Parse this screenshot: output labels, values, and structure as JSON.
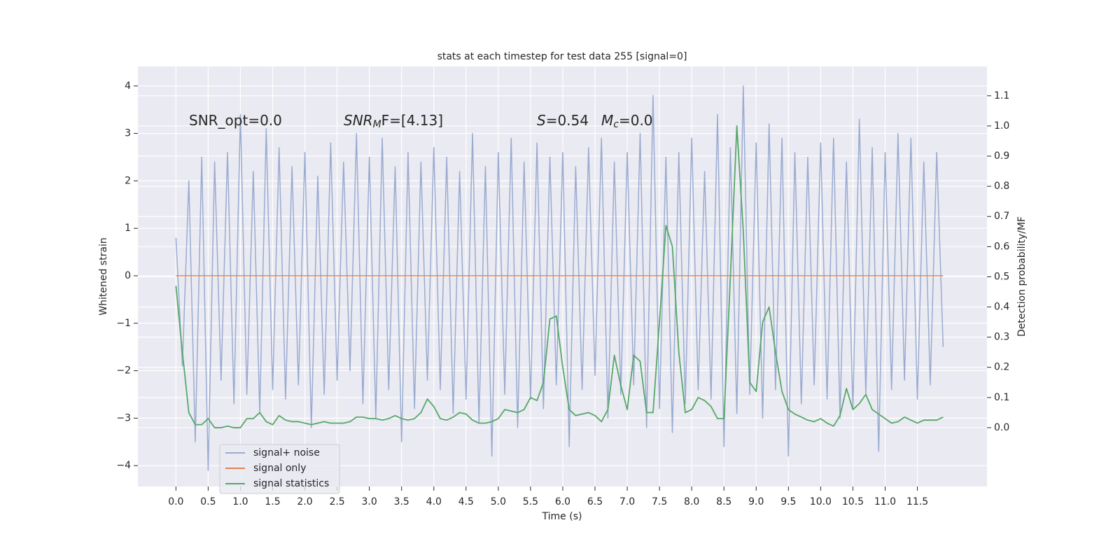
{
  "chart_data": {
    "type": "line",
    "title": "stats at each timestep for test data 255 [signal=0]",
    "xlabel": "Time (s)",
    "ylabel": "Whitened strain",
    "y2label": "Detection probability/MF",
    "annotations": [
      {
        "text": "SNR_opt=0.0"
      },
      {
        "base": "SNR",
        "sub": "M",
        "rest": "F=[4.13]"
      },
      {
        "base": "S",
        "rest": "=0.54"
      },
      {
        "base": "M",
        "sub": "c",
        "rest": "=0.0"
      }
    ],
    "x": [
      0,
      0.1,
      0.2,
      0.3,
      0.4,
      0.5,
      0.6,
      0.7,
      0.8,
      0.9,
      1,
      1.1,
      1.2,
      1.3,
      1.4,
      1.5,
      1.6,
      1.7,
      1.8,
      1.9,
      2,
      2.1,
      2.2,
      2.3,
      2.4,
      2.5,
      2.6,
      2.7,
      2.8,
      2.9,
      3,
      3.1,
      3.2,
      3.3,
      3.4,
      3.5,
      3.6,
      3.7,
      3.8,
      3.9,
      4,
      4.1,
      4.2,
      4.3,
      4.4,
      4.5,
      4.6,
      4.7,
      4.8,
      4.9,
      5,
      5.1,
      5.2,
      5.3,
      5.4,
      5.5,
      5.6,
      5.7,
      5.8,
      5.9,
      6,
      6.1,
      6.2,
      6.3,
      6.4,
      6.5,
      6.6,
      6.7,
      6.8,
      6.9,
      7,
      7.1,
      7.2,
      7.3,
      7.4,
      7.5,
      7.6,
      7.7,
      7.8,
      7.9,
      8,
      8.1,
      8.2,
      8.3,
      8.4,
      8.5,
      8.6,
      8.7,
      8.8,
      8.9,
      9,
      9.1,
      9.2,
      9.3,
      9.4,
      9.5,
      9.6,
      9.7,
      9.8,
      9.9,
      10,
      10.1,
      10.2,
      10.3,
      10.4,
      10.5,
      10.6,
      10.7,
      10.8,
      10.9,
      11,
      11.1,
      11.2,
      11.3,
      11.4,
      11.5,
      11.6,
      11.7,
      11.8,
      11.9
    ],
    "series": [
      {
        "name": "signal+ noise",
        "color": "#9aabd0",
        "values": [
          0.8,
          -1.9,
          2.0,
          -3.5,
          2.5,
          -4.1,
          2.4,
          -2.2,
          2.6,
          -2.7,
          3.4,
          -2.5,
          2.2,
          -2.9,
          3.1,
          -2.4,
          2.7,
          -2.6,
          2.3,
          -2.3,
          2.6,
          -3.2,
          2.1,
          -2.5,
          2.8,
          -2.2,
          2.4,
          -2.0,
          3.0,
          -2.7,
          2.5,
          -3.0,
          2.9,
          -2.4,
          2.3,
          -3.5,
          2.6,
          -2.8,
          2.4,
          -2.2,
          2.7,
          -2.4,
          2.5,
          -2.9,
          2.2,
          -2.6,
          3.0,
          -3.1,
          2.3,
          -3.8,
          2.6,
          -2.5,
          2.9,
          -3.2,
          2.4,
          -2.6,
          2.8,
          -2.8,
          2.5,
          -2.3,
          2.6,
          -3.6,
          2.3,
          -2.4,
          2.7,
          -2.1,
          2.9,
          -3.0,
          2.4,
          -2.5,
          2.6,
          -2.3,
          3.0,
          -3.2,
          3.8,
          -2.8,
          2.5,
          -3.3,
          2.6,
          -2.7,
          2.9,
          -2.4,
          2.2,
          -2.6,
          3.4,
          -3.6,
          2.7,
          -2.9,
          4.0,
          -2.5,
          2.8,
          -3.0,
          3.2,
          -2.4,
          2.9,
          -3.8,
          2.6,
          -2.7,
          2.5,
          -2.3,
          2.8,
          -2.6,
          2.9,
          -3.0,
          2.4,
          -2.8,
          3.3,
          -2.5,
          2.7,
          -3.7,
          2.6,
          -2.4,
          3.0,
          -2.2,
          2.9,
          -2.6,
          2.4,
          -2.3,
          2.6,
          -1.5
        ]
      },
      {
        "name": "signal only",
        "color": "#dd8452",
        "values": [
          0,
          0,
          0,
          0,
          0,
          0,
          0,
          0,
          0,
          0,
          0,
          0,
          0,
          0,
          0,
          0,
          0,
          0,
          0,
          0,
          0,
          0,
          0,
          0,
          0,
          0,
          0,
          0,
          0,
          0,
          0,
          0,
          0,
          0,
          0,
          0,
          0,
          0,
          0,
          0,
          0,
          0,
          0,
          0,
          0,
          0,
          0,
          0,
          0,
          0,
          0,
          0,
          0,
          0,
          0,
          0,
          0,
          0,
          0,
          0,
          0,
          0,
          0,
          0,
          0,
          0,
          0,
          0,
          0,
          0,
          0,
          0,
          0,
          0,
          0,
          0,
          0,
          0,
          0,
          0,
          0,
          0,
          0,
          0,
          0,
          0,
          0,
          0,
          0,
          0,
          0,
          0,
          0,
          0,
          0,
          0,
          0,
          0,
          0,
          0,
          0,
          0,
          0,
          0,
          0,
          0,
          0,
          0,
          0,
          0,
          0,
          0,
          0,
          0,
          0,
          0,
          0,
          0,
          0,
          0
        ]
      },
      {
        "name": "signal statistics",
        "color": "#55a868",
        "axis": "y2",
        "values": [
          0.47,
          0.25,
          0.05,
          0.01,
          0.01,
          0.03,
          0.0,
          0.0,
          0.005,
          0.0,
          0.0,
          0.03,
          0.03,
          0.05,
          0.02,
          0.01,
          0.04,
          0.025,
          0.02,
          0.02,
          0.015,
          0.01,
          0.015,
          0.02,
          0.015,
          0.015,
          0.015,
          0.02,
          0.035,
          0.035,
          0.03,
          0.03,
          0.025,
          0.03,
          0.04,
          0.03,
          0.025,
          0.03,
          0.05,
          0.095,
          0.07,
          0.03,
          0.025,
          0.035,
          0.05,
          0.045,
          0.025,
          0.015,
          0.015,
          0.02,
          0.03,
          0.06,
          0.055,
          0.05,
          0.06,
          0.1,
          0.09,
          0.15,
          0.36,
          0.37,
          0.2,
          0.06,
          0.04,
          0.045,
          0.05,
          0.04,
          0.02,
          0.06,
          0.24,
          0.14,
          0.06,
          0.24,
          0.22,
          0.05,
          0.05,
          0.35,
          0.67,
          0.6,
          0.25,
          0.05,
          0.06,
          0.1,
          0.09,
          0.07,
          0.03,
          0.03,
          0.5,
          1.0,
          0.65,
          0.15,
          0.12,
          0.35,
          0.4,
          0.25,
          0.12,
          0.06,
          0.045,
          0.035,
          0.025,
          0.02,
          0.03,
          0.015,
          0.005,
          0.04,
          0.13,
          0.06,
          0.08,
          0.11,
          0.06,
          0.045,
          0.03,
          0.015,
          0.02,
          0.035,
          0.025,
          0.015,
          0.025,
          0.025,
          0.025,
          0.035
        ]
      }
    ],
    "xlim": [
      -0.59,
      12.58
    ],
    "xticks": [
      {
        "value": 0,
        "label": "0.0"
      },
      0.5,
      {
        "value": 1,
        "label": "1.0"
      },
      1.5,
      {
        "value": 2,
        "label": "2.0"
      },
      2.5,
      {
        "value": 3,
        "label": "3.0"
      },
      3.5,
      {
        "value": 4,
        "label": "4.0"
      },
      4.5,
      {
        "value": 5,
        "label": "5.0"
      },
      5.5,
      {
        "value": 6,
        "label": "6.0"
      },
      6.5,
      {
        "value": 7,
        "label": "7.0"
      },
      7.5,
      {
        "value": 8,
        "label": "8.0"
      },
      8.5,
      {
        "value": 9,
        "label": "9.0"
      },
      9.5,
      {
        "value": 10,
        "label": "10.0"
      },
      10.5,
      {
        "value": 11,
        "label": "11.0"
      },
      11.5
    ],
    "ylim": [
      -4.44,
      4.41
    ],
    "yticks": [
      {
        "value": -4,
        "label": "−4"
      },
      {
        "value": -3,
        "label": "−3"
      },
      {
        "value": -2,
        "label": "−2"
      },
      {
        "value": -1,
        "label": "−1"
      },
      0,
      1,
      2,
      3,
      4
    ],
    "y2lim": [
      -0.195,
      1.197
    ],
    "y2ticks": [
      {
        "value": 0,
        "label": "0.0"
      },
      0.1,
      0.2,
      0.3,
      0.4,
      0.5,
      0.6,
      0.7,
      0.8,
      0.9,
      {
        "value": 1,
        "label": "1.0"
      },
      1.1
    ],
    "grid": true,
    "legend": "lower left"
  }
}
